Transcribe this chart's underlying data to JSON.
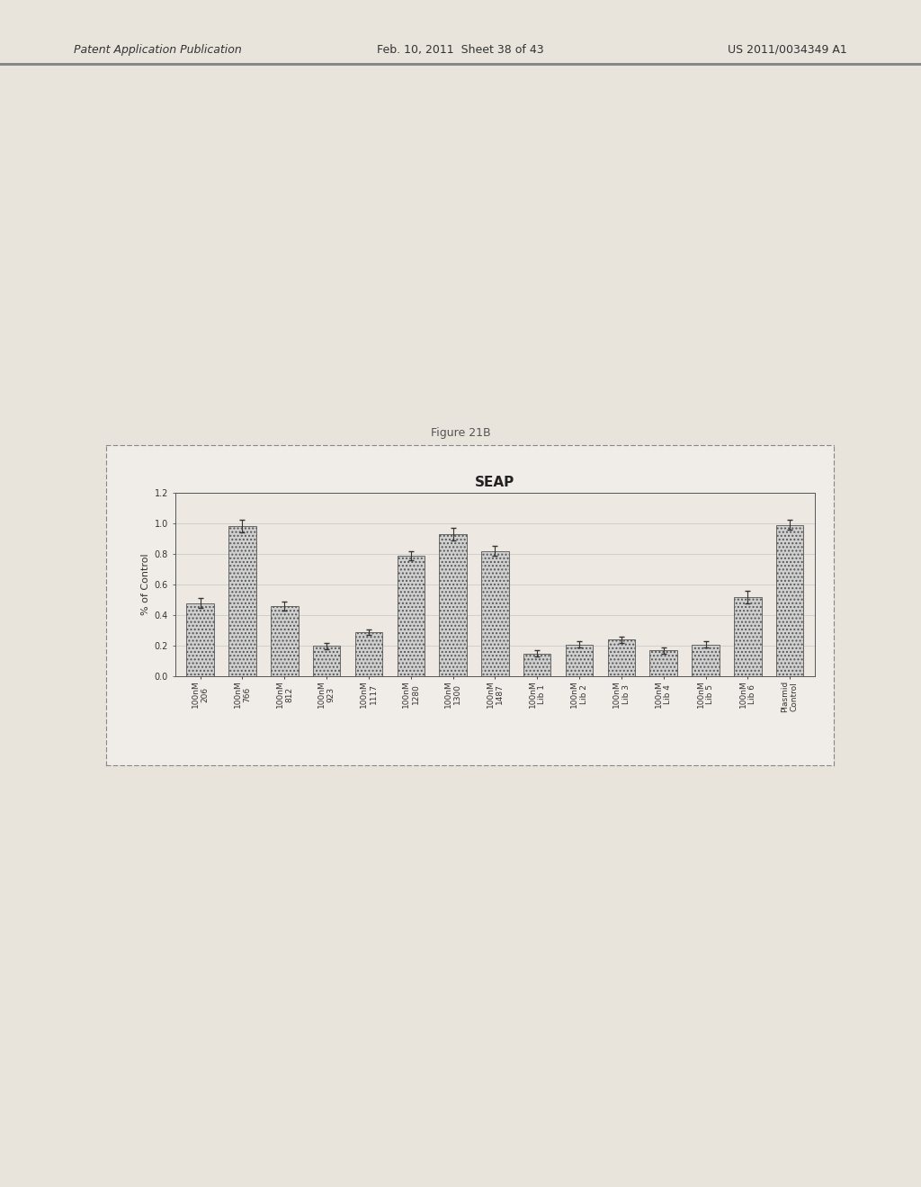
{
  "title": "SEAP",
  "figure_label": "Figure 21B",
  "header_left": "Patent Application Publication",
  "header_mid": "Feb. 10, 2011  Sheet 38 of 43",
  "header_right": "US 2011/0034349 A1",
  "ylabel": "% of Control",
  "ylim": [
    0,
    1.2
  ],
  "yticks": [
    0,
    0.2,
    0.4,
    0.6,
    0.8,
    1.0,
    1.2
  ],
  "categories": [
    "100nM\n206",
    "100nM\n766",
    "100nM\n812",
    "100nM\n923",
    "100nM\n1117",
    "100nM\n1280",
    "100nM\n1300",
    "100nM\n1487",
    "100nM\nLib 1",
    "100nM\nLib 2",
    "100nM\nLib 3",
    "100nM\nLib 4",
    "100nM\nLib 5",
    "100nM\nLib 6",
    "Plasmid\nControl"
  ],
  "values": [
    0.48,
    0.98,
    0.46,
    0.2,
    0.29,
    0.79,
    0.93,
    0.82,
    0.15,
    0.21,
    0.24,
    0.17,
    0.21,
    0.52,
    0.99
  ],
  "errors": [
    0.03,
    0.04,
    0.03,
    0.02,
    0.02,
    0.03,
    0.04,
    0.03,
    0.02,
    0.02,
    0.02,
    0.02,
    0.02,
    0.04,
    0.03
  ],
  "bar_color": "#d0d0d0",
  "bar_edgecolor": "#555555",
  "error_color": "#333333",
  "page_bg": "#e8e4dc",
  "chart_bg": "#f0ede8",
  "inner_bg": "#ede9e2",
  "grid_color": "#bbbbbb",
  "title_fontsize": 11,
  "tick_fontsize": 6.5,
  "ylabel_fontsize": 8,
  "header_fontsize": 9
}
